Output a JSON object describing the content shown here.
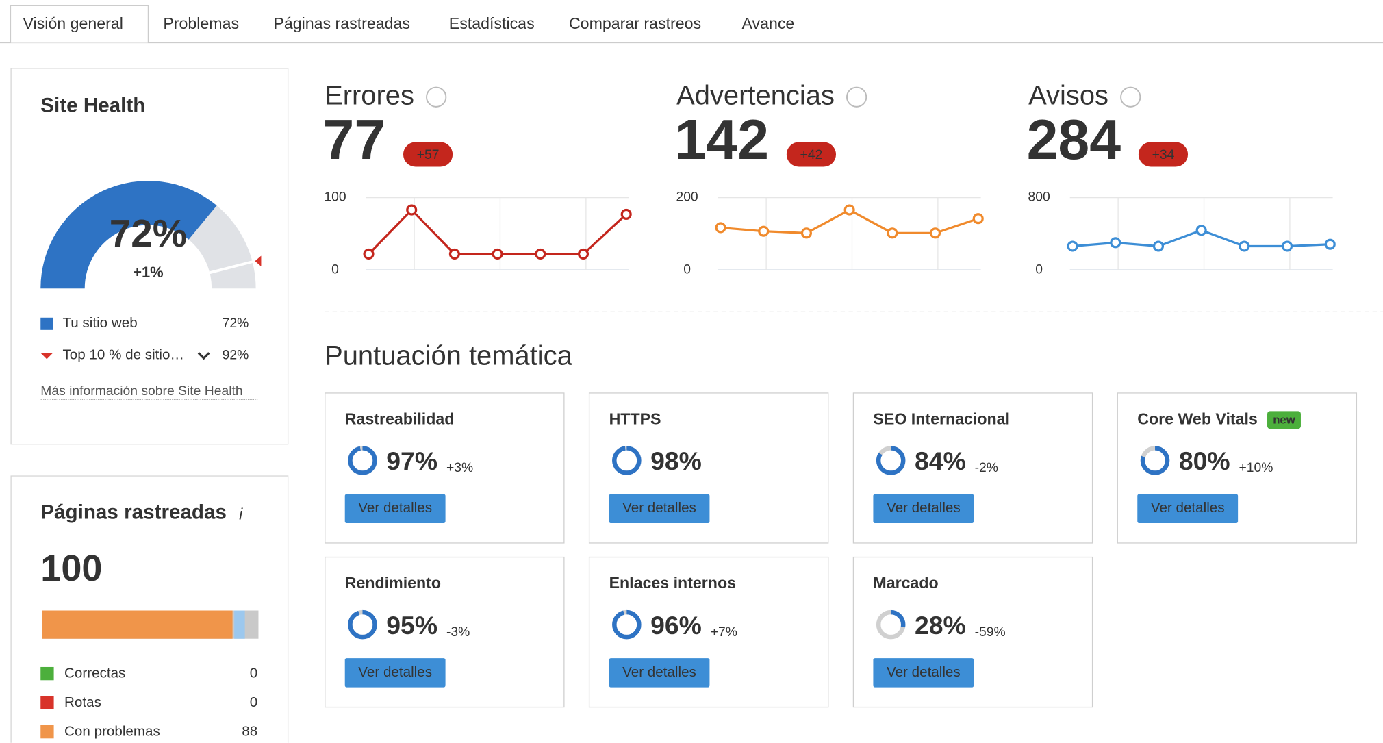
{
  "tabs": [
    "Visión general",
    "Problemas",
    "Páginas rastreadas",
    "Estadísticas",
    "Comparar rastreos",
    "Avance"
  ],
  "site_health": {
    "title": "Site Health",
    "change": "+1%",
    "legend": [
      {
        "name": "Tu sitio web",
        "value": 72,
        "label": "72%",
        "color": "#2e73c4"
      },
      {
        "name": "Top 10 % de sitio…",
        "value": 92,
        "label": "92%",
        "color": "#d8332a"
      }
    ],
    "link": "Más información sobre Site Health"
  },
  "metrics": [
    {
      "title": "Errores",
      "value": 77,
      "change": "+57",
      "color": "#c4261d",
      "ylim": [
        0,
        100
      ],
      "yticks": [
        0,
        100
      ],
      "values": [
        22,
        83,
        22,
        22,
        22,
        22,
        77
      ]
    },
    {
      "title": "Advertencias",
      "value": 142,
      "change": "+42",
      "color": "#f08a2c",
      "ylim": [
        0,
        200
      ],
      "yticks": [
        0,
        200
      ],
      "values": [
        117,
        107,
        102,
        166,
        102,
        102,
        142
      ]
    },
    {
      "title": "Avisos",
      "value": 284,
      "change": "+34",
      "color": "#3d8ed6",
      "ylim": [
        0,
        800
      ],
      "yticks": [
        0,
        800
      ],
      "values": [
        263,
        302,
        263,
        439,
        263,
        263,
        284
      ]
    }
  ],
  "topics": {
    "title": "Puntuación temática",
    "button": "Ver detalles",
    "cards": [
      {
        "name": "Rastreabilidad",
        "value": 97,
        "label": "97%",
        "change": "+3%"
      },
      {
        "name": "HTTPS",
        "value": 98,
        "label": "98%"
      },
      {
        "name": "SEO Internacional",
        "value": 84,
        "label": "84%",
        "change": "-2%"
      },
      {
        "name": "Core Web Vitals",
        "badge": "new",
        "value": 80,
        "label": "80%",
        "change": "+10%"
      },
      {
        "name": "Rendimiento",
        "value": 95,
        "label": "95%",
        "change": "-3%"
      },
      {
        "name": "Enlaces internos",
        "value": 96,
        "label": "96%",
        "change": "+7%"
      },
      {
        "name": "Marcado",
        "value": 28,
        "label": "28%",
        "change": "-59%"
      }
    ]
  },
  "crawled": {
    "title": "Páginas rastreadas",
    "total": 100,
    "items": [
      {
        "name": "Correctas",
        "value": 0,
        "color": "#4caf3c"
      },
      {
        "name": "Rotas",
        "value": 0,
        "color": "#d8332a"
      },
      {
        "name": "Con problemas",
        "value": 88,
        "color": "#f0954a"
      }
    ]
  }
}
